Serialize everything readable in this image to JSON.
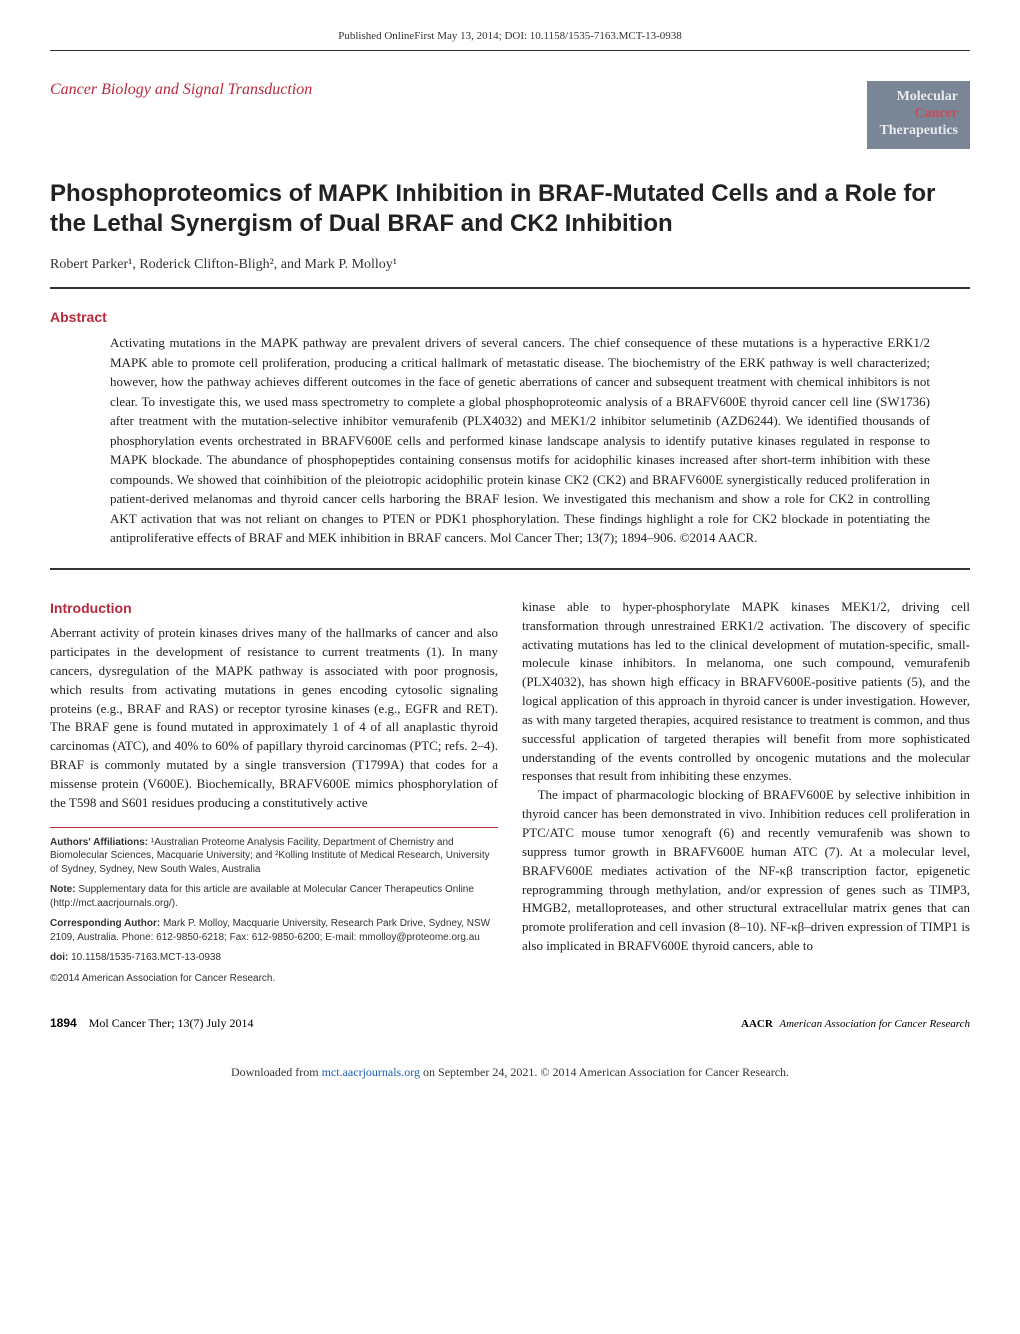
{
  "header": {
    "online_first": "Published OnlineFirst May 13, 2014; DOI: 10.1158/1535-7163.MCT-13-0938",
    "section_label": "Cancer Biology and Signal Transduction",
    "brand": {
      "l1": "Molecular",
      "l2": "Cancer",
      "l3": "Therapeutics"
    }
  },
  "title": "Phosphoproteomics of MAPK Inhibition in BRAF-Mutated Cells and a Role for the Lethal Synergism of Dual BRAF and CK2 Inhibition",
  "authors": "Robert Parker¹, Roderick Clifton-Bligh², and Mark P. Molloy¹",
  "abstract": {
    "label": "Abstract",
    "body": "Activating mutations in the MAPK pathway are prevalent drivers of several cancers. The chief consequence of these mutations is a hyperactive ERK1/2 MAPK able to promote cell proliferation, producing a critical hallmark of metastatic disease. The biochemistry of the ERK pathway is well characterized; however, how the pathway achieves different outcomes in the face of genetic aberrations of cancer and subsequent treatment with chemical inhibitors is not clear. To investigate this, we used mass spectrometry to complete a global phosphoproteomic analysis of a BRAFV600E thyroid cancer cell line (SW1736) after treatment with the mutation-selective inhibitor vemurafenib (PLX4032) and MEK1/2 inhibitor selumetinib (AZD6244). We identified thousands of phosphorylation events orchestrated in BRAFV600E cells and performed kinase landscape analysis to identify putative kinases regulated in response to MAPK blockade. The abundance of phosphopeptides containing consensus motifs for acidophilic kinases increased after short-term inhibition with these compounds. We showed that coinhibition of the pleiotropic acidophilic protein kinase CK2 (CK2) and BRAFV600E synergistically reduced proliferation in patient-derived melanomas and thyroid cancer cells harboring the BRAF lesion. We investigated this mechanism and show a role for CK2 in controlling AKT activation that was not reliant on changes to PTEN or PDK1 phosphorylation. These findings highlight a role for CK2 blockade in potentiating the antiproliferative effects of BRAF and MEK inhibition in BRAF cancers. Mol Cancer Ther; 13(7); 1894–906. ©2014 AACR."
  },
  "intro": {
    "label": "Introduction",
    "left_p1": "Aberrant activity of protein kinases drives many of the hallmarks of cancer and also participates in the development of resistance to current treatments (1). In many cancers, dysregulation of the MAPK pathway is associated with poor prognosis, which results from activating mutations in genes encoding cytosolic signaling proteins (e.g., BRAF and RAS) or receptor tyrosine kinases (e.g., EGFR and RET). The BRAF gene is found mutated in approximately 1 of 4 of all anaplastic thyroid carcinomas (ATC), and 40% to 60% of papillary thyroid carcinomas (PTC; refs. 2–4). BRAF is commonly mutated by a single transversion (T1799A) that codes for a missense protein (V600E). Biochemically, BRAFV600E mimics phosphorylation of the T598 and S601 residues producing a constitutively active",
    "right_p1": "kinase able to hyper-phosphorylate MAPK kinases MEK1/2, driving cell transformation through unrestrained ERK1/2 activation. The discovery of specific activating mutations has led to the clinical development of mutation-specific, small-molecule kinase inhibitors. In melanoma, one such compound, vemurafenib (PLX4032), has shown high efficacy in BRAFV600E-positive patients (5), and the logical application of this approach in thyroid cancer is under investigation. However, as with many targeted therapies, acquired resistance to treatment is common, and thus successful application of targeted therapies will benefit from more sophisticated understanding of the events controlled by oncogenic mutations and the molecular responses that result from inhibiting these enzymes.",
    "right_p2": "The impact of pharmacologic blocking of BRAFV600E by selective inhibition in thyroid cancer has been demonstrated in vivo. Inhibition reduces cell proliferation in PTC/ATC mouse tumor xenograft (6) and recently vemurafenib was shown to suppress tumor growth in BRAFV600E human ATC (7). At a molecular level, BRAFV600E mediates activation of the NF-κβ transcription factor, epigenetic reprogramming through methylation, and/or expression of genes such as TIMP3, HMGB2, metalloproteases, and other structural extracellular matrix genes that can promote proliferation and cell invasion (8–10). NF-κβ–driven expression of TIMP1 is also implicated in BRAFV600E thyroid cancers, able to"
  },
  "footnotes": {
    "affiliations_label": "Authors' Affiliations:",
    "affiliations": " ¹Australian Proteome Analysis Facility, Department of Chemistry and Biomolecular Sciences, Macquarie University; and ²Kolling Institute of Medical Research, University of Sydney, Sydney, New South Wales, Australia",
    "note_label": "Note:",
    "note": " Supplementary data for this article are available at Molecular Cancer Therapeutics Online (http://mct.aacrjournals.org/).",
    "corresponding_label": "Corresponding Author:",
    "corresponding": " Mark P. Molloy, Macquarie University, Research Park Drive, Sydney, NSW 2109, Australia. Phone: 612-9850-6218; Fax: 612-9850-6200; E-mail: mmolloy@proteome.org.au",
    "doi_label": "doi:",
    "doi": " 10.1158/1535-7163.MCT-13-0938",
    "copyright": "©2014 American Association for Cancer Research."
  },
  "footer": {
    "page_number": "1894",
    "journal_cite": "Mol Cancer Ther; 13(7) July 2014",
    "right_text": "American Association for Cancer Research"
  },
  "download": {
    "prefix": "Downloaded from ",
    "link_text": "mct.aacrjournals.org",
    "suffix": " on September 24, 2021. © 2014 American Association for Cancer Research."
  },
  "colors": {
    "accent_red": "#b8293d",
    "brand_bg": "#7a8596",
    "link_blue": "#1a5fb4"
  }
}
